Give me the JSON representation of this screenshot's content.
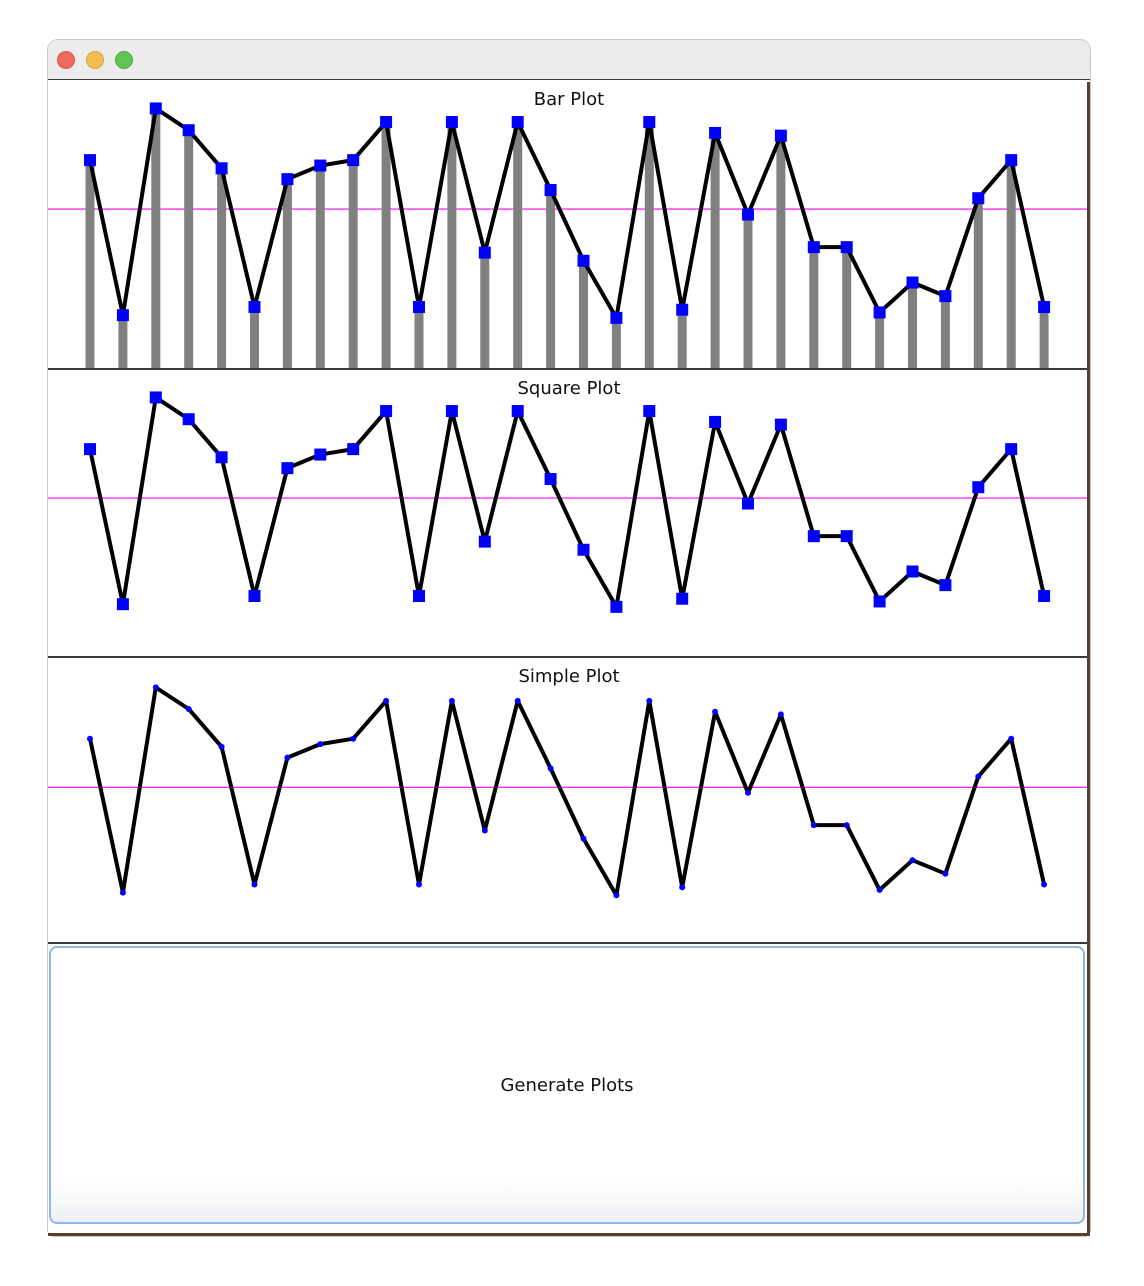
{
  "window": {
    "buttons": {
      "close": "close-button",
      "minimize": "minimize-button",
      "zoom": "zoom-button"
    }
  },
  "colors": {
    "line": "#000000",
    "bar": "#808080",
    "marker": "#0000ff",
    "reference_line": "#ff00ff",
    "button_border": "#8fb7e8"
  },
  "panels": [
    {
      "title": "Bar Plot"
    },
    {
      "title": "Square Plot"
    },
    {
      "title": "Simple Plot"
    }
  ],
  "chart_data": [
    {
      "type": "bar",
      "title": "Bar Plot",
      "xlabel": "",
      "ylabel": "",
      "ylim": [
        0,
        100
      ],
      "reference_line": 61,
      "values": [
        79,
        22,
        98,
        90,
        76,
        25,
        72,
        77,
        79,
        93,
        25,
        93,
        45,
        93,
        68,
        42,
        21,
        93,
        24,
        89,
        59,
        88,
        47,
        47,
        23,
        34,
        29,
        65,
        79,
        25
      ],
      "grid": false,
      "legend": "none"
    },
    {
      "type": "line",
      "title": "Square Plot",
      "xlabel": "",
      "ylabel": "",
      "ylim": [
        0,
        100
      ],
      "marker": "square",
      "reference_line": 61,
      "values": [
        79,
        22,
        98,
        90,
        76,
        25,
        72,
        77,
        79,
        93,
        25,
        93,
        45,
        93,
        68,
        42,
        21,
        93,
        24,
        89,
        59,
        88,
        47,
        47,
        23,
        34,
        29,
        65,
        79,
        25
      ],
      "grid": false,
      "legend": "none"
    },
    {
      "type": "line",
      "title": "Simple Plot",
      "xlabel": "",
      "ylabel": "",
      "ylim": [
        0,
        100
      ],
      "marker": "dot",
      "reference_line": 61,
      "values": [
        79,
        22,
        98,
        90,
        76,
        25,
        72,
        77,
        79,
        93,
        25,
        93,
        45,
        93,
        68,
        42,
        21,
        93,
        24,
        89,
        59,
        88,
        47,
        47,
        23,
        34,
        29,
        65,
        79,
        25
      ],
      "grid": false,
      "legend": "none"
    }
  ],
  "generate_button": {
    "label": "Generate Plots"
  }
}
